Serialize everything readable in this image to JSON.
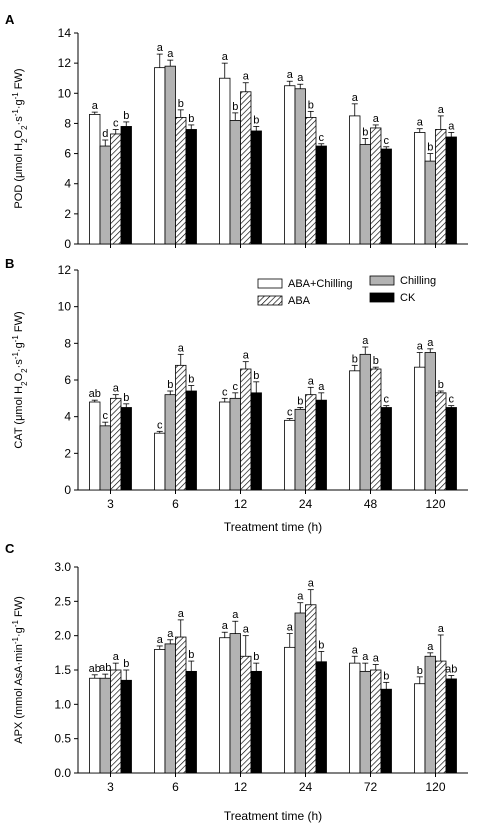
{
  "colors": {
    "ABA+Chilling": "#ffffff",
    "Chilling": "#b3b3b3",
    "ABA": "hatch",
    "CK": "#000000"
  },
  "legend": [
    "ABA+Chilling",
    "Chilling",
    "ABA",
    "CK"
  ],
  "chart_data": [
    {
      "type": "bar",
      "panel": "A",
      "ylabel": "POD (μmol H2O2·s-1·g-1 FW)",
      "xlabel": "",
      "ylim": [
        0,
        14
      ],
      "yticks": [
        0,
        2,
        4,
        6,
        8,
        10,
        12,
        14
      ],
      "categories": [
        "3",
        "6",
        "12",
        "24",
        "48",
        "120"
      ],
      "series": [
        {
          "name": "ABA+Chilling",
          "values": [
            8.6,
            11.7,
            11.0,
            10.5,
            8.5,
            7.4
          ],
          "errors": [
            0.15,
            0.9,
            1.0,
            0.3,
            0.8,
            0.25
          ],
          "letters": [
            "a",
            "a",
            "a",
            "a",
            "a",
            "a"
          ]
        },
        {
          "name": "Chilling",
          "values": [
            6.5,
            11.8,
            8.2,
            10.3,
            6.6,
            5.5
          ],
          "errors": [
            0.4,
            0.4,
            0.5,
            0.3,
            0.4,
            0.5
          ],
          "letters": [
            "d",
            "a",
            "b",
            "a",
            "b",
            "b"
          ]
        },
        {
          "name": "ABA",
          "values": [
            7.3,
            8.4,
            10.1,
            8.4,
            7.7,
            7.6
          ],
          "errors": [
            0.3,
            0.5,
            0.6,
            0.4,
            0.2,
            0.9
          ],
          "letters": [
            "c",
            "b",
            "a",
            "b",
            "a",
            "a"
          ]
        },
        {
          "name": "CK",
          "values": [
            7.8,
            7.6,
            7.5,
            6.5,
            6.3,
            7.1
          ],
          "errors": [
            0.3,
            0.3,
            0.3,
            0.15,
            0.15,
            0.3
          ],
          "letters": [
            "b",
            "b",
            "b",
            "c",
            "c",
            "a"
          ]
        }
      ]
    },
    {
      "type": "bar",
      "panel": "B",
      "ylabel": "CAT (μmol H2O2·s-1·g-1 FW)",
      "xlabel": "Treatment time (h)",
      "ylim": [
        0,
        12
      ],
      "yticks": [
        0,
        2,
        4,
        6,
        8,
        10,
        12
      ],
      "categories": [
        "3",
        "6",
        "12",
        "24",
        "48",
        "120"
      ],
      "series": [
        {
          "name": "ABA+Chilling",
          "values": [
            4.8,
            3.1,
            4.8,
            3.8,
            6.5,
            6.7
          ],
          "errors": [
            0.1,
            0.1,
            0.2,
            0.1,
            0.3,
            0.8
          ],
          "letters": [
            "ab",
            "c",
            "c",
            "c",
            "b",
            "a"
          ]
        },
        {
          "name": "Chilling",
          "values": [
            3.5,
            5.2,
            5.0,
            4.4,
            7.4,
            7.5
          ],
          "errors": [
            0.2,
            0.2,
            0.3,
            0.1,
            0.4,
            0.2
          ],
          "letters": [
            "c",
            "b",
            "c",
            "b",
            "a",
            "a"
          ]
        },
        {
          "name": "ABA",
          "values": [
            5.0,
            6.8,
            6.6,
            5.2,
            6.6,
            5.3
          ],
          "errors": [
            0.2,
            0.6,
            0.4,
            0.4,
            0.1,
            0.1
          ],
          "letters": [
            "a",
            "a",
            "a",
            "a",
            "b",
            "b"
          ]
        },
        {
          "name": "CK",
          "values": [
            4.5,
            5.4,
            5.3,
            4.9,
            4.5,
            4.5
          ],
          "errors": [
            0.2,
            0.3,
            0.6,
            0.4,
            0.1,
            0.1
          ],
          "letters": [
            "b",
            "b",
            "b",
            "a",
            "c",
            "c"
          ]
        }
      ]
    },
    {
      "type": "bar",
      "panel": "C",
      "ylabel": "APX (mmol AsA·min-1·g-1 FW)",
      "xlabel": "Treatment time (h)",
      "ylim": [
        0,
        3.0
      ],
      "yticks": [
        0.0,
        0.5,
        1.0,
        1.5,
        2.0,
        2.5,
        3.0
      ],
      "categories": [
        "3",
        "6",
        "12",
        "24",
        "72",
        "120"
      ],
      "series": [
        {
          "name": "ABA+Chilling",
          "values": [
            1.38,
            1.8,
            1.97,
            1.83,
            1.6,
            1.3
          ],
          "errors": [
            0.05,
            0.05,
            0.08,
            0.2,
            0.1,
            0.1
          ],
          "letters": [
            "ab",
            "a",
            "a",
            "a",
            "a",
            "b"
          ]
        },
        {
          "name": "Chilling",
          "values": [
            1.38,
            1.88,
            2.03,
            2.33,
            1.48,
            1.7
          ],
          "errors": [
            0.06,
            0.06,
            0.18,
            0.15,
            0.12,
            0.05
          ],
          "letters": [
            "ab",
            "a",
            "a",
            "a",
            "a",
            "a"
          ]
        },
        {
          "name": "ABA",
          "values": [
            1.5,
            1.98,
            1.7,
            2.45,
            1.5,
            1.63
          ],
          "errors": [
            0.1,
            0.25,
            0.3,
            0.22,
            0.08,
            0.38
          ],
          "letters": [
            "a",
            "a",
            "a",
            "a",
            "a",
            "a"
          ]
        },
        {
          "name": "CK",
          "values": [
            1.35,
            1.48,
            1.48,
            1.62,
            1.22,
            1.37
          ],
          "errors": [
            0.15,
            0.15,
            0.12,
            0.15,
            0.1,
            0.05
          ],
          "letters": [
            "b",
            "b",
            "b",
            "b",
            "b",
            "ab"
          ]
        }
      ]
    }
  ]
}
